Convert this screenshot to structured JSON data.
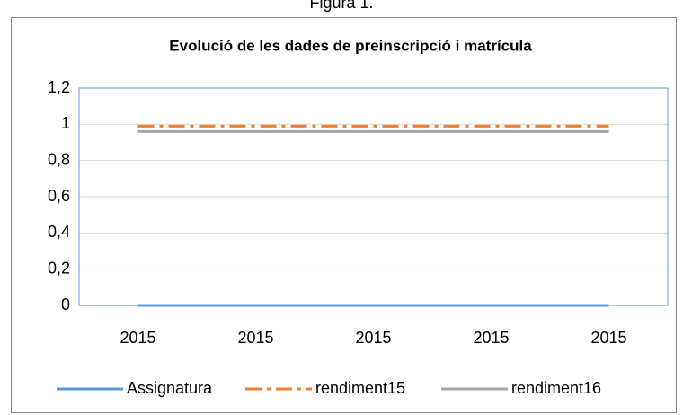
{
  "caption": "Figura 1.",
  "chart_data": {
    "type": "line",
    "title": "Evolució de les dades de preinscripció i matrícula",
    "categories": [
      "2015",
      "2015",
      "2015",
      "2015",
      "2015"
    ],
    "series": [
      {
        "name": "Assignatura",
        "color": "#5b9bd5",
        "dash": "solid",
        "values": [
          0,
          0,
          0,
          0,
          0
        ]
      },
      {
        "name": "rendiment15",
        "color": "#ed7d31",
        "dash": "dashdot",
        "values": [
          0.99,
          0.99,
          0.99,
          0.99,
          0.99
        ]
      },
      {
        "name": "rendiment16",
        "color": "#a5a5a5",
        "dash": "solid",
        "values": [
          0.96,
          0.96,
          0.96,
          0.96,
          0.96
        ]
      }
    ],
    "ylim": [
      0,
      1.2
    ],
    "yticks": [
      0,
      {
        "value": 0.2,
        "label": "0,2"
      },
      {
        "value": 0.4,
        "label": "0,4"
      },
      {
        "value": 0.6,
        "label": "0,6"
      },
      {
        "value": 0.8,
        "label": "0,8"
      },
      1,
      {
        "value": 1.2,
        "label": "1,2"
      }
    ],
    "grid": true,
    "legend": "bottom"
  }
}
